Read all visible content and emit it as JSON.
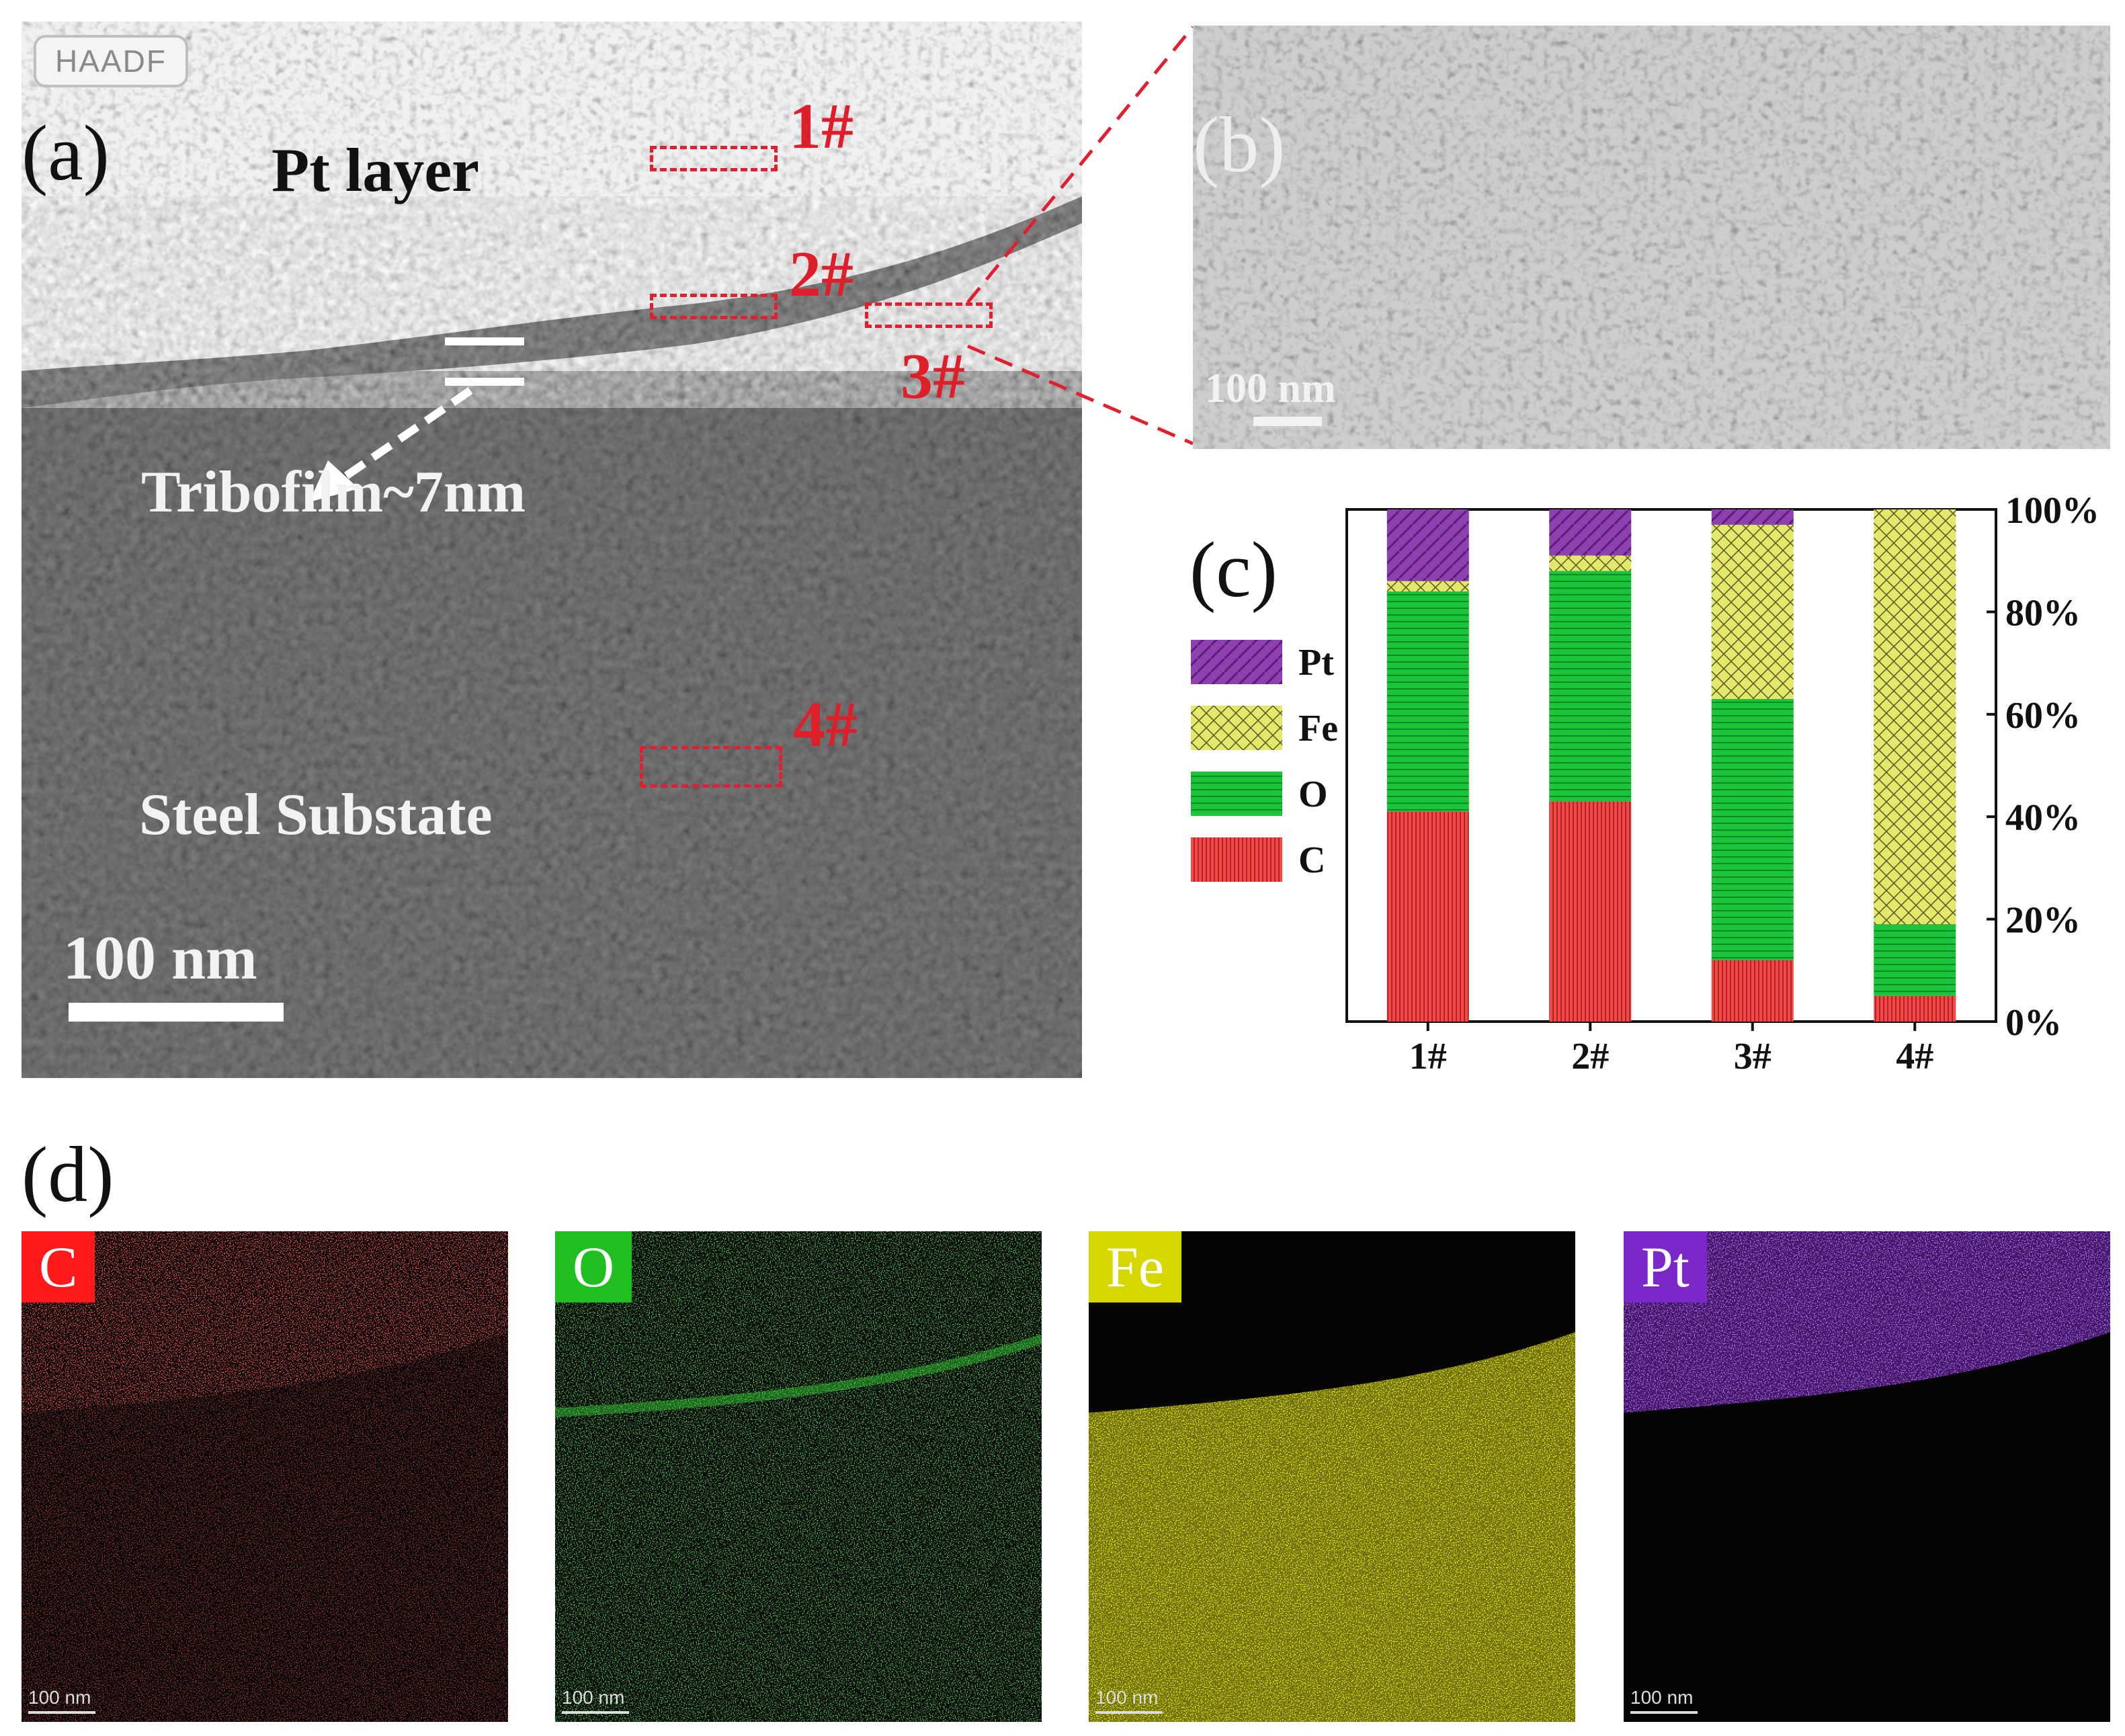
{
  "panel_a": {
    "letter": "(a)",
    "badge": "HAADF",
    "pt_layer": "Pt layer",
    "tribofilm": "Tribofilm~7nm",
    "steel": "Steel Substate",
    "scale": "100 nm",
    "samples": [
      "1#",
      "2#",
      "3#",
      "4#"
    ]
  },
  "panel_b": {
    "letter": "(b)",
    "scale": "100 nm"
  },
  "panel_c": {
    "letter": "(c)"
  },
  "panel_d": {
    "letter": "(d)",
    "maps": [
      {
        "element": "C",
        "scale": "100 nm",
        "color": "#ff1a1a"
      },
      {
        "element": "O",
        "scale": "100 nm",
        "color": "#1fbf1f"
      },
      {
        "element": "Fe",
        "scale": "100 nm",
        "color": "#d7d700"
      },
      {
        "element": "Pt",
        "scale": "100 nm",
        "color": "#7a28c8"
      }
    ]
  },
  "chart_data": {
    "type": "bar",
    "stacked": true,
    "categories": [
      "1#",
      "2#",
      "3#",
      "4#"
    ],
    "yticks": [
      "0%",
      "20%",
      "40%",
      "60%",
      "80%",
      "100%"
    ],
    "ylim": [
      0,
      100
    ],
    "yaxis_side": "right",
    "legend_position": "left",
    "series": [
      {
        "name": "C",
        "values": [
          41,
          43,
          12,
          5
        ],
        "color": "#ef4a4a"
      },
      {
        "name": "O",
        "values": [
          43,
          45,
          51,
          14
        ],
        "color": "#1cc43c"
      },
      {
        "name": "Fe",
        "values": [
          2,
          3,
          34,
          81
        ],
        "color": "#e4e86a"
      },
      {
        "name": "Pt",
        "values": [
          14,
          9,
          3,
          0
        ],
        "color": "#8e3fb0"
      }
    ]
  }
}
